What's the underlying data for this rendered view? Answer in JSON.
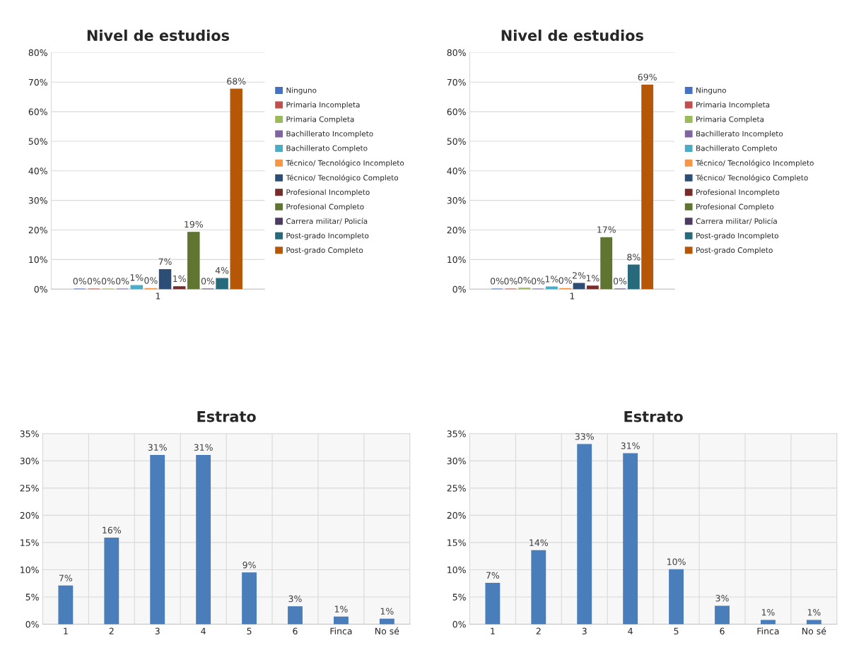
{
  "chart_data": [
    {
      "type": "bar",
      "title": "Nivel de estudios",
      "categories": [
        "1"
      ],
      "ylim": [
        0,
        80
      ],
      "yticks": [
        {
          "value": 0,
          "label": "0%"
        },
        {
          "value": 10,
          "label": "10%"
        },
        {
          "value": 20,
          "label": "20%"
        },
        {
          "value": 30,
          "label": "30%"
        },
        {
          "value": 40,
          "label": "40%"
        },
        {
          "value": 50,
          "label": "50%"
        },
        {
          "value": 60,
          "label": "60%"
        },
        {
          "value": 70,
          "label": "70%"
        },
        {
          "value": 80,
          "label": "80%"
        }
      ],
      "grid": "y",
      "legend": "right",
      "series": [
        {
          "name": "Ninguno",
          "color": "#4472c4",
          "values": [
            0
          ],
          "value_labels": [
            "0%"
          ]
        },
        {
          "name": "Primaria Incompleta",
          "color": "#c0504d",
          "values": [
            0
          ],
          "value_labels": [
            "0%"
          ]
        },
        {
          "name": "Primaria Completa",
          "color": "#9bbb59",
          "values": [
            0
          ],
          "value_labels": [
            "0%"
          ]
        },
        {
          "name": "Bachillerato Incompleto",
          "color": "#8064a2",
          "values": [
            0
          ],
          "value_labels": [
            "0%"
          ]
        },
        {
          "name": "Bachillerato Completo",
          "color": "#4bacc6",
          "values": [
            1.2
          ],
          "value_labels": [
            "1%"
          ]
        },
        {
          "name": "Técnico/ Tecnológico Incompleto",
          "color": "#f79646",
          "values": [
            0.2
          ],
          "value_labels": [
            "0%"
          ]
        },
        {
          "name": "Técnico/ Tecnológico Completo",
          "color": "#2c4d75",
          "values": [
            6.6
          ],
          "value_labels": [
            "7%"
          ]
        },
        {
          "name": "Profesional Incompleto",
          "color": "#772c2a",
          "values": [
            0.8
          ],
          "value_labels": [
            "1%"
          ]
        },
        {
          "name": "Profesional Completo",
          "color": "#5f7530",
          "values": [
            19.2
          ],
          "value_labels": [
            "19%"
          ]
        },
        {
          "name": "Carrera militar/ Policía",
          "color": "#4d3b62",
          "values": [
            0
          ],
          "value_labels": [
            "0%"
          ]
        },
        {
          "name": "Post-grado Incompleto",
          "color": "#276a7c",
          "values": [
            3.6
          ],
          "value_labels": [
            "4%"
          ]
        },
        {
          "name": "Post-grado Completo",
          "color": "#b65708",
          "values": [
            67.6
          ],
          "value_labels": [
            "68%"
          ]
        }
      ]
    },
    {
      "type": "bar",
      "title": "Nivel de estudios",
      "categories": [
        "1"
      ],
      "ylim": [
        0,
        80
      ],
      "yticks": [
        {
          "value": 0,
          "label": "0%"
        },
        {
          "value": 10,
          "label": "10%"
        },
        {
          "value": 20,
          "label": "20%"
        },
        {
          "value": 30,
          "label": "30%"
        },
        {
          "value": 40,
          "label": "40%"
        },
        {
          "value": 50,
          "label": "50%"
        },
        {
          "value": 60,
          "label": "60%"
        },
        {
          "value": 70,
          "label": "70%"
        },
        {
          "value": 80,
          "label": "80%"
        }
      ],
      "grid": "y",
      "legend": "right",
      "series": [
        {
          "name": "Ninguno",
          "color": "#4472c4",
          "values": [
            0
          ],
          "value_labels": [
            "0%"
          ]
        },
        {
          "name": "Primaria Incompleta",
          "color": "#c0504d",
          "values": [
            0
          ],
          "value_labels": [
            "0%"
          ]
        },
        {
          "name": "Primaria Completa",
          "color": "#9bbb59",
          "values": [
            0.3
          ],
          "value_labels": [
            "0%"
          ]
        },
        {
          "name": "Bachillerato Incompleto",
          "color": "#8064a2",
          "values": [
            0
          ],
          "value_labels": [
            "0%"
          ]
        },
        {
          "name": "Bachillerato Completo",
          "color": "#4bacc6",
          "values": [
            0.7
          ],
          "value_labels": [
            "1%"
          ]
        },
        {
          "name": "Técnico/ Tecnológico Incompleto",
          "color": "#f79646",
          "values": [
            0.2
          ],
          "value_labels": [
            "0%"
          ]
        },
        {
          "name": "Técnico/ Tecnológico Completo",
          "color": "#2c4d75",
          "values": [
            1.9
          ],
          "value_labels": [
            "2%"
          ]
        },
        {
          "name": "Profesional Incompleto",
          "color": "#772c2a",
          "values": [
            1.0
          ],
          "value_labels": [
            "1%"
          ]
        },
        {
          "name": "Profesional Completo",
          "color": "#5f7530",
          "values": [
            17.4
          ],
          "value_labels": [
            "17%"
          ]
        },
        {
          "name": "Carrera militar/ Policía",
          "color": "#4d3b62",
          "values": [
            0
          ],
          "value_labels": [
            "0%"
          ]
        },
        {
          "name": "Post-grado Incompleto",
          "color": "#276a7c",
          "values": [
            8.1
          ],
          "value_labels": [
            "8%"
          ]
        },
        {
          "name": "Post-grado Completo",
          "color": "#b65708",
          "values": [
            69.0
          ],
          "value_labels": [
            "69%"
          ]
        }
      ]
    },
    {
      "type": "bar",
      "title": "Estrato",
      "categories": [
        "1",
        "2",
        "3",
        "4",
        "5",
        "6",
        "Finca",
        "No sé"
      ],
      "ylim": [
        0,
        35
      ],
      "yticks": [
        {
          "value": 0,
          "label": "0%"
        },
        {
          "value": 5,
          "label": "5%"
        },
        {
          "value": 10,
          "label": "10%"
        },
        {
          "value": 15,
          "label": "15%"
        },
        {
          "value": 20,
          "label": "20%"
        },
        {
          "value": 25,
          "label": "25%"
        },
        {
          "value": 30,
          "label": "30%"
        },
        {
          "value": 35,
          "label": "35%"
        }
      ],
      "grid": true,
      "color": "#4a7ebb",
      "values": [
        7.0,
        15.8,
        31.0,
        31.0,
        9.4,
        3.2,
        1.3,
        0.9
      ],
      "value_labels": [
        "7%",
        "16%",
        "31%",
        "31%",
        "9%",
        "3%",
        "1%",
        "1%"
      ]
    },
    {
      "type": "bar",
      "title": "Estrato",
      "categories": [
        "1",
        "2",
        "3",
        "4",
        "5",
        "6",
        "Finca",
        "No sé"
      ],
      "ylim": [
        0,
        35
      ],
      "yticks": [
        {
          "value": 0,
          "label": "0%"
        },
        {
          "value": 5,
          "label": "5%"
        },
        {
          "value": 10,
          "label": "10%"
        },
        {
          "value": 15,
          "label": "15%"
        },
        {
          "value": 20,
          "label": "20%"
        },
        {
          "value": 25,
          "label": "25%"
        },
        {
          "value": 30,
          "label": "30%"
        },
        {
          "value": 35,
          "label": "35%"
        }
      ],
      "grid": true,
      "color": "#4a7ebb",
      "values": [
        7.5,
        13.5,
        33.0,
        31.3,
        10.0,
        3.3,
        0.7,
        0.7
      ],
      "value_labels": [
        "7%",
        "14%",
        "33%",
        "31%",
        "10%",
        "3%",
        "1%",
        "1%"
      ]
    }
  ]
}
